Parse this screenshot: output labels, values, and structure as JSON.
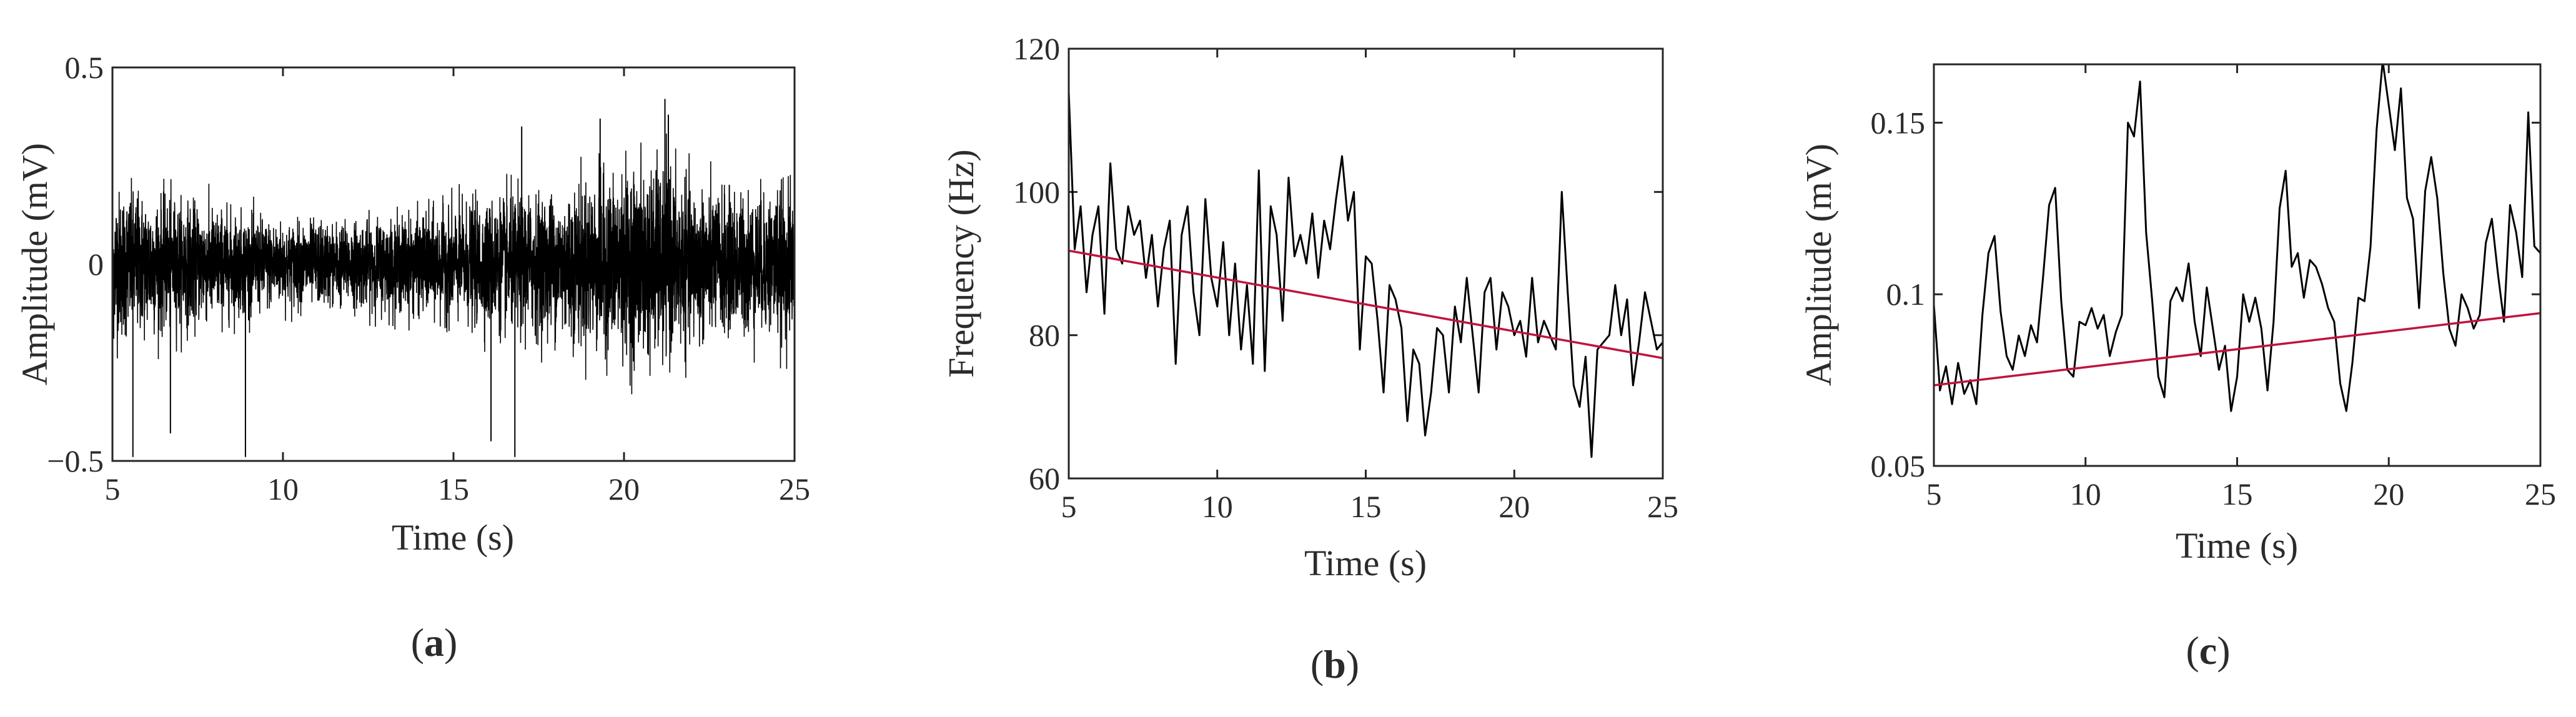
{
  "colors": {
    "signal": "#000000",
    "trend": "#c0143c",
    "axes": "#262626",
    "text": "#2b2b2b"
  },
  "chart_data": [
    {
      "type": "line",
      "panel_label": "(a)",
      "panel_letter": "a",
      "xlabel": "Time (s)",
      "ylabel": "Amplitude (mV)",
      "xlim": [
        5,
        25
      ],
      "ylim": [
        -0.5,
        0.5
      ],
      "xticks": [
        5,
        10,
        15,
        20,
        25
      ],
      "xtick_labels": [
        "5",
        "10",
        "15",
        "20",
        "25"
      ],
      "yticks": [
        -0.5,
        0,
        0.5
      ],
      "ytick_labels": [
        "−0.5",
        "0",
        "0.5"
      ],
      "grid": false,
      "series": [
        {
          "kind": "dense-noise",
          "x_range": [
            5,
            25
          ],
          "envelope": {
            "x": [
              5,
              6,
              7,
              8,
              9,
              10,
              11,
              12,
              13,
              14,
              15,
              16,
              17,
              18,
              19,
              20,
              21,
              22,
              23,
              24,
              25
            ],
            "upper": [
              0.22,
              0.2,
              0.18,
              0.16,
              0.14,
              0.12,
              0.12,
              0.12,
              0.13,
              0.14,
              0.16,
              0.18,
              0.2,
              0.2,
              0.24,
              0.26,
              0.28,
              0.22,
              0.2,
              0.2,
              0.22
            ],
            "lower": [
              -0.22,
              -0.2,
              -0.18,
              -0.16,
              -0.14,
              -0.12,
              -0.12,
              -0.12,
              -0.13,
              -0.14,
              -0.16,
              -0.18,
              -0.2,
              -0.2,
              -0.24,
              -0.26,
              -0.28,
              -0.22,
              -0.2,
              -0.2,
              -0.22
            ]
          },
          "spikes": [
            {
              "x": 5.6,
              "y": -0.49
            },
            {
              "x": 6.7,
              "y": -0.43
            },
            {
              "x": 8.9,
              "y": -0.49
            },
            {
              "x": 16.1,
              "y": -0.45
            },
            {
              "x": 16.8,
              "y": -0.49
            },
            {
              "x": 17.0,
              "y": 0.35
            },
            {
              "x": 19.3,
              "y": 0.37
            },
            {
              "x": 21.2,
              "y": 0.42
            },
            {
              "x": 21.3,
              "y": 0.38
            }
          ]
        }
      ]
    },
    {
      "type": "line",
      "panel_label": "(b)",
      "panel_letter": "b",
      "xlabel": "Time (s)",
      "ylabel": "Frequency (Hz)",
      "xlim": [
        5,
        25
      ],
      "ylim": [
        60,
        120
      ],
      "xticks": [
        5,
        10,
        15,
        20,
        25
      ],
      "xtick_labels": [
        "5",
        "10",
        "15",
        "20",
        "25"
      ],
      "yticks": [
        60,
        80,
        100,
        120
      ],
      "ytick_labels": [
        "60",
        "80",
        "100",
        "120"
      ],
      "grid": false,
      "series": [
        {
          "kind": "signal",
          "x": [
            5.0,
            5.2,
            5.4,
            5.6,
            5.8,
            6.0,
            6.2,
            6.4,
            6.6,
            6.8,
            7.0,
            7.2,
            7.4,
            7.6,
            7.8,
            8.0,
            8.2,
            8.4,
            8.6,
            8.8,
            9.0,
            9.2,
            9.4,
            9.6,
            9.8,
            10.0,
            10.2,
            10.4,
            10.6,
            10.8,
            11.0,
            11.2,
            11.4,
            11.6,
            11.8,
            12.0,
            12.2,
            12.4,
            12.6,
            12.8,
            13.0,
            13.2,
            13.4,
            13.6,
            13.8,
            14.0,
            14.2,
            14.4,
            14.6,
            14.8,
            15.0,
            15.2,
            15.4,
            15.6,
            15.8,
            16.0,
            16.2,
            16.4,
            16.6,
            16.8,
            17.0,
            17.2,
            17.4,
            17.6,
            17.8,
            18.0,
            18.2,
            18.4,
            18.6,
            18.8,
            19.0,
            19.2,
            19.4,
            19.6,
            19.8,
            20.0,
            20.2,
            20.4,
            20.6,
            20.8,
            21.0,
            21.2,
            21.4,
            21.6,
            21.8,
            22.0,
            22.2,
            22.4,
            22.6,
            22.8,
            23.0,
            23.2,
            23.4,
            23.6,
            23.8,
            24.0,
            24.2,
            24.4,
            24.6,
            24.8,
            25.0
          ],
          "y": [
            114,
            92,
            98,
            86,
            94,
            98,
            83,
            104,
            92,
            90,
            98,
            94,
            96,
            88,
            94,
            84,
            92,
            96,
            76,
            94,
            98,
            86,
            80,
            99,
            88,
            84,
            93,
            80,
            90,
            78,
            87,
            76,
            103,
            75,
            98,
            94,
            82,
            102,
            91,
            94,
            90,
            97,
            88,
            96,
            92,
            99,
            105,
            96,
            100,
            78,
            91,
            90,
            82,
            72,
            87,
            85,
            81,
            68,
            78,
            76,
            66,
            72,
            81,
            80,
            72,
            84,
            79,
            88,
            80,
            72,
            86,
            88,
            78,
            86,
            84,
            80,
            82,
            77,
            88,
            79,
            82,
            80,
            78,
            100,
            86,
            73,
            70,
            77,
            63,
            78,
            79,
            80,
            87,
            80,
            85,
            73,
            79,
            86,
            82,
            78,
            79
          ]
        },
        {
          "kind": "trend",
          "x": [
            5,
            25
          ],
          "y": [
            91.8,
            76.8
          ]
        }
      ]
    },
    {
      "type": "line",
      "panel_label": "(c)",
      "panel_letter": "c",
      "xlabel": "Time (s)",
      "ylabel": "Amplitude (mV)",
      "xlim": [
        5,
        25
      ],
      "ylim": [
        0.05,
        0.167
      ],
      "xticks": [
        5,
        10,
        15,
        20,
        25
      ],
      "xtick_labels": [
        "5",
        "10",
        "15",
        "20",
        "25"
      ],
      "yticks": [
        0.05,
        0.1,
        0.15
      ],
      "ytick_labels": [
        "0.05",
        "0.1",
        "0.15"
      ],
      "grid": false,
      "series": [
        {
          "kind": "signal",
          "x": [
            5.0,
            5.2,
            5.4,
            5.6,
            5.8,
            6.0,
            6.2,
            6.4,
            6.6,
            6.8,
            7.0,
            7.2,
            7.4,
            7.6,
            7.8,
            8.0,
            8.2,
            8.4,
            8.6,
            8.8,
            9.0,
            9.2,
            9.4,
            9.6,
            9.8,
            10.0,
            10.2,
            10.4,
            10.6,
            10.8,
            11.0,
            11.2,
            11.4,
            11.6,
            11.8,
            12.0,
            12.2,
            12.4,
            12.6,
            12.8,
            13.0,
            13.2,
            13.4,
            13.6,
            13.8,
            14.0,
            14.2,
            14.4,
            14.6,
            14.8,
            15.0,
            15.2,
            15.4,
            15.6,
            15.8,
            16.0,
            16.2,
            16.4,
            16.6,
            16.8,
            17.0,
            17.2,
            17.4,
            17.6,
            17.8,
            18.0,
            18.2,
            18.4,
            18.6,
            18.8,
            19.0,
            19.2,
            19.4,
            19.6,
            19.8,
            20.0,
            20.2,
            20.4,
            20.6,
            20.8,
            21.0,
            21.2,
            21.4,
            21.6,
            21.8,
            22.0,
            22.2,
            22.4,
            22.6,
            22.8,
            23.0,
            23.2,
            23.4,
            23.6,
            23.8,
            24.0,
            24.2,
            24.4,
            24.6,
            24.8,
            25.0
          ],
          "y": [
            0.097,
            0.072,
            0.079,
            0.068,
            0.08,
            0.071,
            0.075,
            0.068,
            0.094,
            0.112,
            0.117,
            0.095,
            0.082,
            0.078,
            0.088,
            0.082,
            0.091,
            0.086,
            0.105,
            0.126,
            0.131,
            0.098,
            0.078,
            0.076,
            0.092,
            0.091,
            0.096,
            0.09,
            0.094,
            0.082,
            0.089,
            0.094,
            0.15,
            0.146,
            0.162,
            0.118,
            0.098,
            0.076,
            0.07,
            0.098,
            0.102,
            0.098,
            0.109,
            0.092,
            0.082,
            0.102,
            0.09,
            0.078,
            0.085,
            0.066,
            0.076,
            0.1,
            0.092,
            0.099,
            0.09,
            0.072,
            0.092,
            0.125,
            0.136,
            0.108,
            0.112,
            0.099,
            0.11,
            0.108,
            0.103,
            0.096,
            0.092,
            0.074,
            0.066,
            0.08,
            0.099,
            0.098,
            0.114,
            0.148,
            0.168,
            0.155,
            0.142,
            0.16,
            0.128,
            0.122,
            0.096,
            0.13,
            0.14,
            0.128,
            0.106,
            0.09,
            0.085,
            0.1,
            0.096,
            0.09,
            0.094,
            0.115,
            0.122,
            0.106,
            0.092,
            0.126,
            0.118,
            0.105,
            0.153,
            0.114,
            0.112
          ]
        },
        {
          "kind": "trend",
          "x": [
            5,
            25
          ],
          "y": [
            0.0735,
            0.0945
          ]
        }
      ]
    }
  ]
}
